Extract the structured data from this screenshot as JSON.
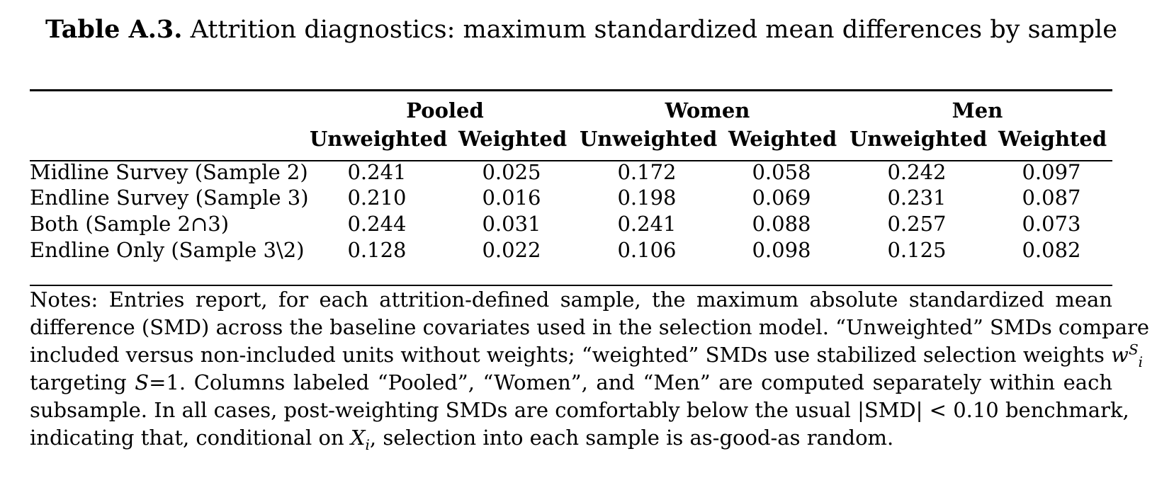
{
  "caption": {
    "label": "Table A.3.",
    "text": "Attrition diagnostics: maximum standardized mean differences by sample"
  },
  "columns": {
    "groups": [
      "Pooled",
      "Women",
      "Men"
    ],
    "subheaders": [
      "Unweighted",
      "Weighted",
      "Unweighted",
      "Weighted",
      "Unweighted",
      "Weighted"
    ]
  },
  "rows": [
    {
      "label": "Midline Survey (Sample 2)",
      "values": [
        "0.241",
        "0.025",
        "0.172",
        "0.058",
        "0.242",
        "0.097"
      ]
    },
    {
      "label": "Endline Survey (Sample 3)",
      "values": [
        "0.210",
        "0.016",
        "0.198",
        "0.069",
        "0.231",
        "0.087"
      ]
    },
    {
      "label": "Both (Sample 2∩3)",
      "values": [
        "0.244",
        "0.031",
        "0.241",
        "0.088",
        "0.257",
        "0.073"
      ]
    },
    {
      "label": "Endline Only (Sample 3\\2)",
      "values": [
        "0.128",
        "0.022",
        "0.106",
        "0.098",
        "0.125",
        "0.082"
      ]
    }
  ],
  "notes": {
    "l1": "Notes: Entries report, for each attrition-defined sample, the maximum absolute standardized mean",
    "l2": "difference (SMD) across the baseline covariates used in the selection model. “Unweighted” SMDs compare",
    "l3a": "included versus non-included units without weights; “weighted” SMDs use stabilized selection weights",
    "l3_var": "w",
    "l3_sub": "i",
    "l3_sup": "S",
    "l4a": "targeting",
    "l4_var": "S",
    "l4b": "=1. Columns labeled “Pooled”, “Women”, and “Men” are computed separately within each",
    "l5": "subsample. In all cases, post-weighting SMDs are comfortably below the usual |SMD| < 0.10 benchmark,",
    "l6a": "indicating that, conditional on",
    "l6_var": "X",
    "l6_sub": "i",
    "l6b": ", selection into each sample is as-good-as random."
  }
}
